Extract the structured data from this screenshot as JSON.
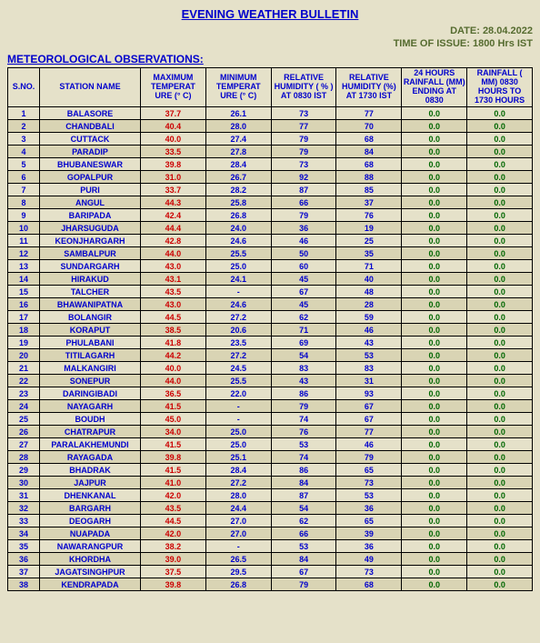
{
  "title": "EVENING WEATHER BULLETIN",
  "date_line": "DATE: 28.04.2022",
  "issue_line": "TIME OF ISSUE: 1800 Hrs IST",
  "subhead": "METEOROLOGICAL OBSERVATIONS:",
  "columns": [
    "S.NO.",
    "STATION NAME",
    "MAXIMUM TEMPERAT URE (° C)",
    "MINIMUM TEMPERAT URE  (° C)",
    "RELATIVE HUMIDITY ( % ) AT 0830 IST",
    "RELATIVE HUMIDITY (%) AT 1730 IST",
    "24 HOURS RAINFALL (MM) ENDING AT 0830",
    "RAINFALL ( MM)  0830 HOURS TO 1730 HOURS"
  ],
  "rows": [
    {
      "n": "1",
      "name": "BALASORE",
      "max": "37.7",
      "min": "26.1",
      "rh1": "73",
      "rh2": "77",
      "r1": "0.0",
      "r2": "0.0"
    },
    {
      "n": "2",
      "name": "CHANDBALI",
      "max": "40.4",
      "min": "28.0",
      "rh1": "77",
      "rh2": "70",
      "r1": "0.0",
      "r2": "0.0"
    },
    {
      "n": "3",
      "name": "CUTTACK",
      "max": "40.0",
      "min": "27.4",
      "rh1": "79",
      "rh2": "68",
      "r1": "0.0",
      "r2": "0.0"
    },
    {
      "n": "4",
      "name": "PARADIP",
      "max": "33.5",
      "min": "27.8",
      "rh1": "79",
      "rh2": "84",
      "r1": "0.0",
      "r2": "0.0"
    },
    {
      "n": "5",
      "name": "BHUBANESWAR",
      "max": "39.8",
      "min": "28.4",
      "rh1": "73",
      "rh2": "68",
      "r1": "0.0",
      "r2": "0.0"
    },
    {
      "n": "6",
      "name": "GOPALPUR",
      "max": "31.0",
      "min": "26.7",
      "rh1": "92",
      "rh2": "88",
      "r1": "0.0",
      "r2": "0.0"
    },
    {
      "n": "7",
      "name": "PURI",
      "max": "33.7",
      "min": "28.2",
      "rh1": "87",
      "rh2": "85",
      "r1": "0.0",
      "r2": "0.0"
    },
    {
      "n": "8",
      "name": "ANGUL",
      "max": "44.3",
      "min": "25.8",
      "rh1": "66",
      "rh2": "37",
      "r1": "0.0",
      "r2": "0.0"
    },
    {
      "n": "9",
      "name": "BARIPADA",
      "max": "42.4",
      "min": "26.8",
      "rh1": "79",
      "rh2": "76",
      "r1": "0.0",
      "r2": "0.0"
    },
    {
      "n": "10",
      "name": "JHARSUGUDA",
      "max": "44.4",
      "min": "24.0",
      "rh1": "36",
      "rh2": "19",
      "r1": "0.0",
      "r2": "0.0"
    },
    {
      "n": "11",
      "name": "KEONJHARGARH",
      "max": "42.8",
      "min": "24.6",
      "rh1": "46",
      "rh2": "25",
      "r1": "0.0",
      "r2": "0.0"
    },
    {
      "n": "12",
      "name": "SAMBALPUR",
      "max": "44.0",
      "min": "25.5",
      "rh1": "50",
      "rh2": "35",
      "r1": "0.0",
      "r2": "0.0"
    },
    {
      "n": "13",
      "name": "SUNDARGARH",
      "max": "43.0",
      "min": "25.0",
      "rh1": "60",
      "rh2": "71",
      "r1": "0.0",
      "r2": "0.0"
    },
    {
      "n": "14",
      "name": "HIRAKUD",
      "max": "43.1",
      "min": "24.1",
      "rh1": "45",
      "rh2": "40",
      "r1": "0.0",
      "r2": "0.0"
    },
    {
      "n": "15",
      "name": "TALCHER",
      "max": "43.5",
      "min": "-",
      "rh1": "67",
      "rh2": "48",
      "r1": "0.0",
      "r2": "0.0"
    },
    {
      "n": "16",
      "name": "BHAWANIPATNA",
      "max": "43.0",
      "min": "24.6",
      "rh1": "45",
      "rh2": "28",
      "r1": "0.0",
      "r2": "0.0"
    },
    {
      "n": "17",
      "name": "BOLANGIR",
      "max": "44.5",
      "min": "27.2",
      "rh1": "62",
      "rh2": "59",
      "r1": "0.0",
      "r2": "0.0"
    },
    {
      "n": "18",
      "name": "KORAPUT",
      "max": "38.5",
      "min": "20.6",
      "rh1": "71",
      "rh2": "46",
      "r1": "0.0",
      "r2": "0.0"
    },
    {
      "n": "19",
      "name": "PHULABANI",
      "max": "41.8",
      "min": "23.5",
      "rh1": "69",
      "rh2": "43",
      "r1": "0.0",
      "r2": "0.0"
    },
    {
      "n": "20",
      "name": "TITILAGARH",
      "max": "44.2",
      "min": "27.2",
      "rh1": "54",
      "rh2": "53",
      "r1": "0.0",
      "r2": "0.0"
    },
    {
      "n": "21",
      "name": "MALKANGIRI",
      "max": "40.0",
      "min": "24.5",
      "rh1": "83",
      "rh2": "83",
      "r1": "0.0",
      "r2": "0.0"
    },
    {
      "n": "22",
      "name": "SONEPUR",
      "max": "44.0",
      "min": "25.5",
      "rh1": "43",
      "rh2": "31",
      "r1": "0.0",
      "r2": "0.0"
    },
    {
      "n": "23",
      "name": "DARINGIBADI",
      "max": "36.5",
      "min": "22.0",
      "rh1": "86",
      "rh2": "93",
      "r1": "0.0",
      "r2": "0.0"
    },
    {
      "n": "24",
      "name": "NAYAGARH",
      "max": "41.5",
      "min": "-",
      "rh1": "79",
      "rh2": "67",
      "r1": "0.0",
      "r2": "0.0"
    },
    {
      "n": "25",
      "name": "BOUDH",
      "max": "45.0",
      "min": "-",
      "rh1": "74",
      "rh2": "67",
      "r1": "0.0",
      "r2": "0.0"
    },
    {
      "n": "26",
      "name": "CHATRAPUR",
      "max": "34.0",
      "min": "25.0",
      "rh1": "76",
      "rh2": "77",
      "r1": "0.0",
      "r2": "0.0"
    },
    {
      "n": "27",
      "name": "PARALAKHEMUNDI",
      "max": "41.5",
      "min": "25.0",
      "rh1": "53",
      "rh2": "46",
      "r1": "0.0",
      "r2": "0.0"
    },
    {
      "n": "28",
      "name": "RAYAGADA",
      "max": "39.8",
      "min": "25.1",
      "rh1": "74",
      "rh2": "79",
      "r1": "0.0",
      "r2": "0.0"
    },
    {
      "n": "29",
      "name": "BHADRAK",
      "max": "41.5",
      "min": "28.4",
      "rh1": "86",
      "rh2": "65",
      "r1": "0.0",
      "r2": "0.0"
    },
    {
      "n": "30",
      "name": "JAJPUR",
      "max": "41.0",
      "min": "27.2",
      "rh1": "84",
      "rh2": "73",
      "r1": "0.0",
      "r2": "0.0"
    },
    {
      "n": "31",
      "name": "DHENKANAL",
      "max": "42.0",
      "min": "28.0",
      "rh1": "87",
      "rh2": "53",
      "r1": "0.0",
      "r2": "0.0"
    },
    {
      "n": "32",
      "name": "BARGARH",
      "max": "43.5",
      "min": "24.4",
      "rh1": "54",
      "rh2": "36",
      "r1": "0.0",
      "r2": "0.0"
    },
    {
      "n": "33",
      "name": "DEOGARH",
      "max": "44.5",
      "min": "27.0",
      "rh1": "62",
      "rh2": "65",
      "r1": "0.0",
      "r2": "0.0"
    },
    {
      "n": "34",
      "name": "NUAPADA",
      "max": "42.0",
      "min": "27.0",
      "rh1": "66",
      "rh2": "39",
      "r1": "0.0",
      "r2": "0.0"
    },
    {
      "n": "35",
      "name": "NAWARANGPUR",
      "max": "38.2",
      "min": "-",
      "rh1": "53",
      "rh2": "36",
      "r1": "0.0",
      "r2": "0.0"
    },
    {
      "n": "36",
      "name": "KHORDHA",
      "max": "39.0",
      "min": "26.5",
      "rh1": "84",
      "rh2": "49",
      "r1": "0.0",
      "r2": "0.0"
    },
    {
      "n": "37",
      "name": "JAGATSINGHPUR",
      "max": "37.5",
      "min": "29.5",
      "rh1": "67",
      "rh2": "73",
      "r1": "0.0",
      "r2": "0.0"
    },
    {
      "n": "38",
      "name": "KENDRAPADA",
      "max": "39.8",
      "min": "26.8",
      "rh1": "79",
      "rh2": "68",
      "r1": "0.0",
      "r2": "0.0"
    }
  ]
}
